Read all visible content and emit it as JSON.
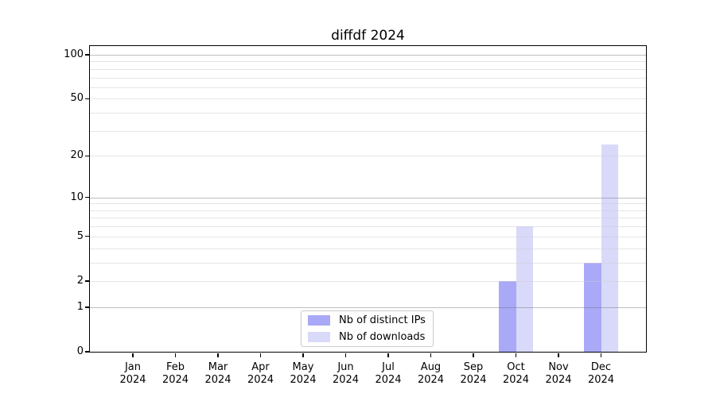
{
  "chart_data": {
    "type": "bar",
    "title": "diffdf 2024",
    "categories": [
      "Jan",
      "Feb",
      "Mar",
      "Apr",
      "May",
      "Jun",
      "Jul",
      "Aug",
      "Sep",
      "Oct",
      "Nov",
      "Dec"
    ],
    "year_line": "2024",
    "series": [
      {
        "name": "Nb of distinct IPs",
        "color": "#a9a9f7",
        "values": [
          0,
          0,
          0,
          0,
          0,
          0,
          0,
          0,
          0,
          2,
          0,
          3
        ]
      },
      {
        "name": "Nb of downloads",
        "color": "#d9d9fa",
        "values": [
          0,
          0,
          0,
          0,
          0,
          0,
          0,
          0,
          0,
          6,
          0,
          24
        ]
      }
    ],
    "yscale": "log1p",
    "ylim": [
      0,
      114.7
    ],
    "y_ticks": [
      0,
      1,
      2,
      5,
      10,
      20,
      50,
      100
    ],
    "y_major_gridlines": [
      1,
      10,
      100
    ],
    "y_minor_gridlines": [
      2,
      3,
      4,
      5,
      6,
      7,
      8,
      9,
      20,
      30,
      40,
      50,
      60,
      70,
      80,
      90
    ],
    "grid_major_color": "rgba(110,110,110,0.45)",
    "grid_minor_color": "rgba(205,205,205,0.5)",
    "legend_position": "lower center",
    "xlabel": "",
    "ylabel": ""
  }
}
